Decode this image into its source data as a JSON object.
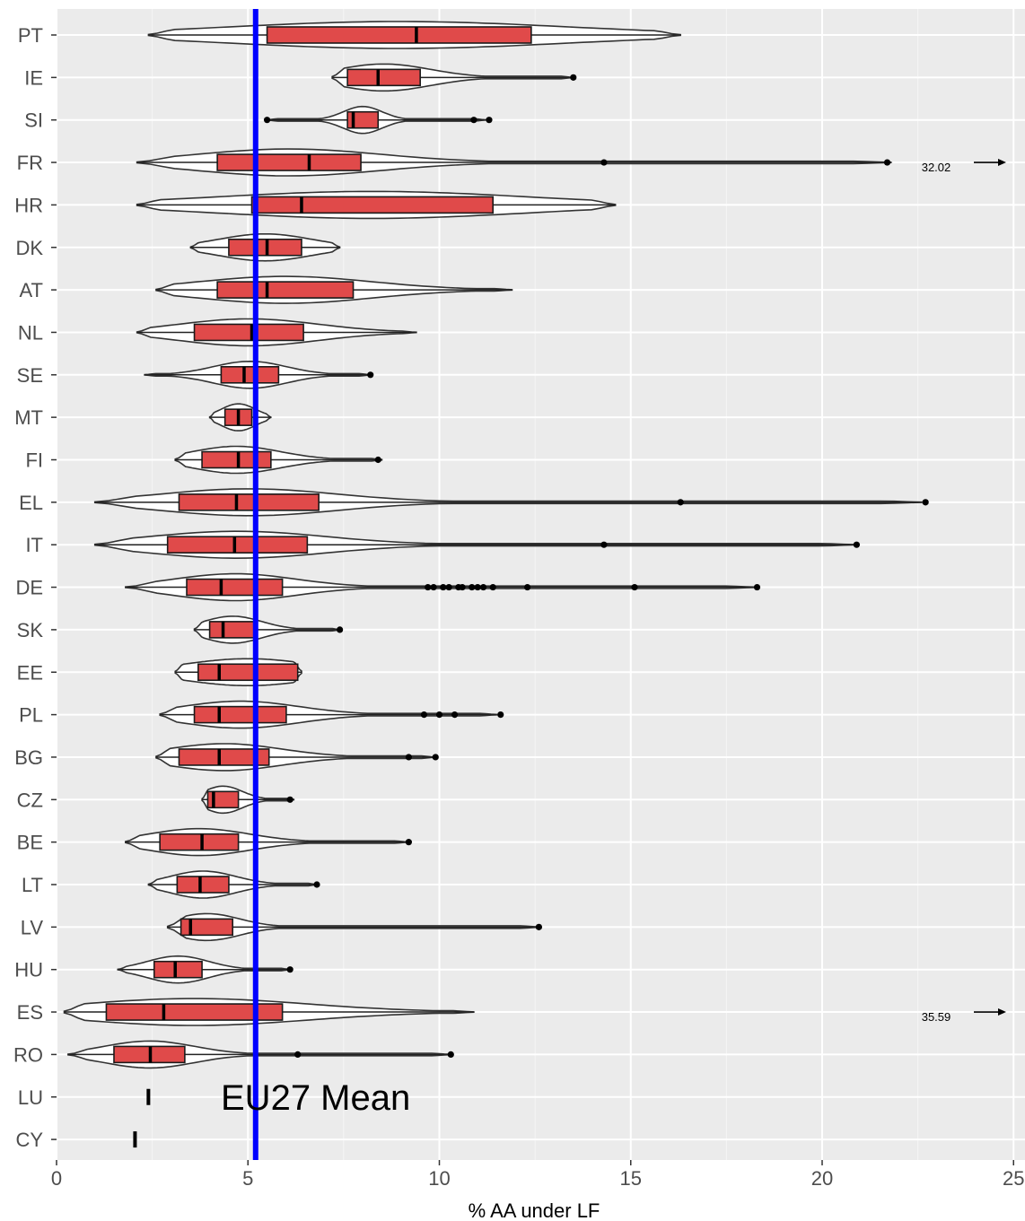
{
  "chart_data": {
    "type": "violin-boxplot",
    "xlabel": "% AA under LF",
    "ylabel": "",
    "xlim": [
      0,
      25
    ],
    "x_ticks": [
      "0",
      "5",
      "10",
      "15",
      "20",
      "25"
    ],
    "grid": true,
    "orientation": "horizontal",
    "box_color": "#e04a4a",
    "mean_line": {
      "label": "EU27 Mean",
      "value": 5.2,
      "color": "#0000ff"
    },
    "categories": [
      "PT",
      "IE",
      "SI",
      "FR",
      "HR",
      "DK",
      "AT",
      "NL",
      "SE",
      "MT",
      "FI",
      "EL",
      "IT",
      "DE",
      "SK",
      "EE",
      "PL",
      "BG",
      "CZ",
      "BE",
      "LT",
      "LV",
      "HU",
      "ES",
      "RO",
      "LU",
      "CY"
    ],
    "series": [
      {
        "country": "PT",
        "violin_min": 2.4,
        "violin_max": 16.3,
        "q1": 5.5,
        "median": 9.4,
        "q3": 12.4,
        "outliers": []
      },
      {
        "country": "IE",
        "violin_min": 7.2,
        "violin_max": 13.5,
        "q1": 7.6,
        "median": 8.4,
        "q3": 9.5,
        "outliers": [
          13.5
        ]
      },
      {
        "country": "SI",
        "violin_min": 5.5,
        "violin_max": 11.2,
        "q1": 7.6,
        "median": 7.75,
        "q3": 8.4,
        "outliers": [
          5.5,
          10.9,
          11.3
        ]
      },
      {
        "country": "FR",
        "violin_min": 2.1,
        "violin_max": 21.8,
        "q1": 4.2,
        "median": 6.6,
        "q3": 7.95,
        "outliers": [
          14.3,
          21.7
        ],
        "offscale_label": "32.02"
      },
      {
        "country": "HR",
        "violin_min": 2.1,
        "violin_max": 14.6,
        "q1": 5.1,
        "median": 6.4,
        "q3": 11.4,
        "outliers": []
      },
      {
        "country": "DK",
        "violin_min": 3.5,
        "violin_max": 7.4,
        "q1": 4.5,
        "median": 5.5,
        "q3": 6.4,
        "outliers": []
      },
      {
        "country": "AT",
        "violin_min": 2.6,
        "violin_max": 11.9,
        "q1": 4.2,
        "median": 5.5,
        "q3": 7.75,
        "outliers": []
      },
      {
        "country": "NL",
        "violin_min": 2.1,
        "violin_max": 9.4,
        "q1": 3.6,
        "median": 5.1,
        "q3": 6.45,
        "outliers": []
      },
      {
        "country": "SE",
        "violin_min": 2.3,
        "violin_max": 8.2,
        "q1": 4.3,
        "median": 4.9,
        "q3": 5.8,
        "outliers": [
          8.2
        ]
      },
      {
        "country": "MT",
        "violin_min": 4.0,
        "violin_max": 5.6,
        "q1": 4.4,
        "median": 4.75,
        "q3": 5.1,
        "outliers": []
      },
      {
        "country": "FI",
        "violin_min": 3.1,
        "violin_max": 8.5,
        "q1": 3.8,
        "median": 4.75,
        "q3": 5.6,
        "outliers": [
          8.4
        ]
      },
      {
        "country": "EL",
        "violin_min": 1.0,
        "violin_max": 22.6,
        "q1": 3.2,
        "median": 4.7,
        "q3": 6.85,
        "outliers": [
          16.3,
          22.7
        ]
      },
      {
        "country": "IT",
        "violin_min": 1.0,
        "violin_max": 20.9,
        "q1": 2.9,
        "median": 4.65,
        "q3": 6.55,
        "outliers": [
          14.3,
          20.9
        ]
      },
      {
        "country": "DE",
        "violin_min": 1.8,
        "violin_max": 18.3,
        "q1": 3.4,
        "median": 4.3,
        "q3": 5.9,
        "outliers": [
          9.7,
          9.85,
          10.1,
          10.25,
          10.5,
          10.6,
          10.85,
          11.0,
          11.15,
          11.4,
          12.3,
          15.1,
          18.3
        ]
      },
      {
        "country": "SK",
        "violin_min": 3.6,
        "violin_max": 7.4,
        "q1": 4.0,
        "median": 4.35,
        "q3": 5.2,
        "outliers": [
          7.4
        ]
      },
      {
        "country": "EE",
        "violin_min": 3.1,
        "violin_max": 6.4,
        "q1": 3.7,
        "median": 4.25,
        "q3": 6.3,
        "outliers": []
      },
      {
        "country": "PL",
        "violin_min": 2.7,
        "violin_max": 11.5,
        "q1": 3.6,
        "median": 4.25,
        "q3": 6.0,
        "outliers": [
          9.6,
          10.0,
          10.4,
          11.6
        ]
      },
      {
        "country": "BG",
        "violin_min": 2.6,
        "violin_max": 9.9,
        "q1": 3.2,
        "median": 4.25,
        "q3": 5.55,
        "outliers": [
          9.2,
          9.9
        ]
      },
      {
        "country": "CZ",
        "violin_min": 3.8,
        "violin_max": 6.2,
        "q1": 3.95,
        "median": 4.1,
        "q3": 4.75,
        "outliers": [
          6.1
        ]
      },
      {
        "country": "BE",
        "violin_min": 1.8,
        "violin_max": 9.2,
        "q1": 2.7,
        "median": 3.8,
        "q3": 4.75,
        "outliers": [
          9.2
        ]
      },
      {
        "country": "LT",
        "violin_min": 2.4,
        "violin_max": 6.8,
        "q1": 3.15,
        "median": 3.75,
        "q3": 4.5,
        "outliers": [
          6.8
        ]
      },
      {
        "country": "LV",
        "violin_min": 2.9,
        "violin_max": 12.6,
        "q1": 3.25,
        "median": 3.5,
        "q3": 4.6,
        "outliers": [
          12.6
        ]
      },
      {
        "country": "HU",
        "violin_min": 1.6,
        "violin_max": 6.1,
        "q1": 2.55,
        "median": 3.1,
        "q3": 3.8,
        "outliers": [
          6.1
        ]
      },
      {
        "country": "ES",
        "violin_min": 0.2,
        "violin_max": 10.9,
        "q1": 1.3,
        "median": 2.8,
        "q3": 5.9,
        "outliers": [],
        "offscale_label": "35.59"
      },
      {
        "country": "RO",
        "violin_min": 0.3,
        "violin_max": 10.3,
        "q1": 1.5,
        "median": 2.45,
        "q3": 3.35,
        "outliers": [
          6.3,
          10.3
        ]
      },
      {
        "country": "LU",
        "violin_min": 2.4,
        "violin_max": 2.4,
        "q1": 2.4,
        "median": 2.4,
        "q3": 2.4,
        "outliers": []
      },
      {
        "country": "CY",
        "violin_min": 2.05,
        "violin_max": 2.05,
        "q1": 2.05,
        "median": 2.05,
        "q3": 2.05,
        "outliers": []
      }
    ]
  }
}
